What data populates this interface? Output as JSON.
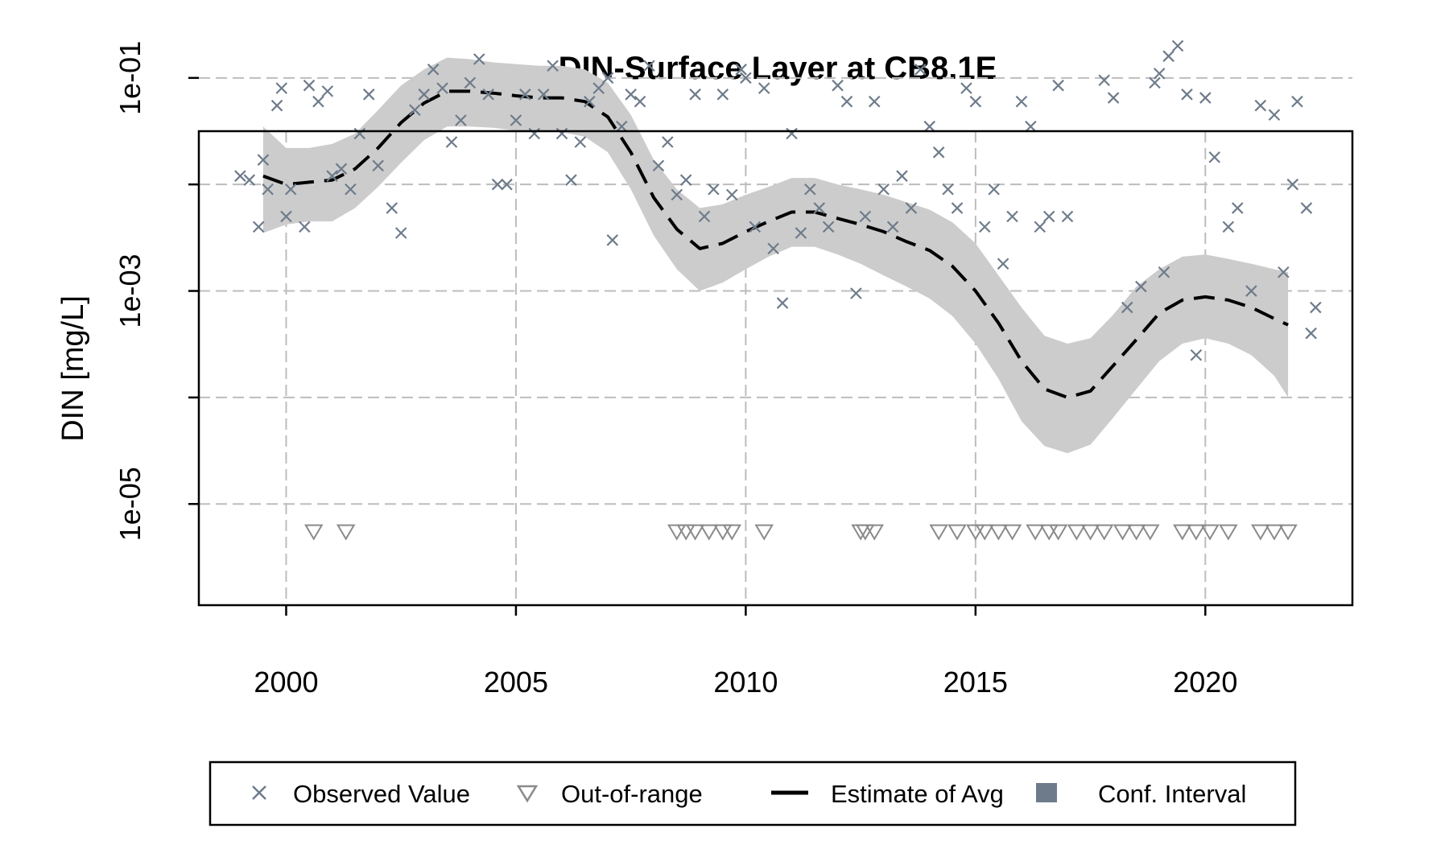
{
  "chart_data": {
    "type": "scatter",
    "title": "DIN-Surface Layer at CB8.1E",
    "xlabel": "",
    "ylabel": "DIN [mg/L]",
    "xlim": [
      1998.1,
      2023.2
    ],
    "ylim_log10": [
      -5.95,
      -1.5
    ],
    "y_scale": "log",
    "grid": true,
    "x_ticks": [
      2000,
      2005,
      2010,
      2015,
      2020
    ],
    "x_tick_labels": [
      "2000",
      "2005",
      "2010",
      "2015",
      "2020"
    ],
    "y_ticks": [
      1e-05,
      0.0001,
      0.001,
      0.01,
      0.1
    ],
    "y_tick_labels": [
      "1e-05",
      "",
      "1e-03",
      "",
      "1e-01"
    ],
    "legend": {
      "position": "bottom",
      "items": [
        {
          "label": "Observed Value",
          "symbol": "x"
        },
        {
          "label": "Out-of-range",
          "symbol": "triangle-down"
        },
        {
          "label": "Estimate of Avg",
          "symbol": "dashed-line"
        },
        {
          "label": "Conf. Interval",
          "symbol": "square"
        }
      ]
    },
    "colors": {
      "observed": "#6e7b8b",
      "out_of_range": "#8a8a8a",
      "estimate": "#000000",
      "ci_band": "#cccccc",
      "ci_legend": "#6e7b8b"
    },
    "series": [
      {
        "name": "Observed Value",
        "kind": "points",
        "x": [
          1999.0,
          1999.2,
          1999.4,
          1999.5,
          1999.6,
          1999.8,
          1999.9,
          2000.0,
          2000.1,
          2000.4,
          2000.5,
          2000.7,
          2000.9,
          2001.0,
          2001.2,
          2001.4,
          2001.6,
          2001.8,
          2002.0,
          2002.3,
          2002.5,
          2002.8,
          2003.0,
          2003.2,
          2003.4,
          2003.6,
          2003.8,
          2004.0,
          2004.2,
          2004.4,
          2004.6,
          2004.8,
          2005.0,
          2005.2,
          2005.4,
          2005.6,
          2005.8,
          2006.0,
          2006.2,
          2006.4,
          2006.6,
          2006.8,
          2007.0,
          2007.1,
          2007.3,
          2007.5,
          2007.7,
          2007.9,
          2008.1,
          2008.3,
          2008.5,
          2008.7,
          2008.9,
          2009.1,
          2009.3,
          2009.5,
          2009.7,
          2009.9,
          2010.0,
          2010.2,
          2010.4,
          2010.6,
          2010.8,
          2011.0,
          2011.2,
          2011.4,
          2011.6,
          2011.8,
          2012.0,
          2012.2,
          2012.4,
          2012.6,
          2012.8,
          2013.0,
          2013.2,
          2013.4,
          2013.6,
          2013.8,
          2014.0,
          2014.2,
          2014.4,
          2014.6,
          2014.8,
          2015.0,
          2015.2,
          2015.4,
          2015.6,
          2015.8,
          2016.0,
          2016.2,
          2016.4,
          2016.6,
          2016.8,
          2017.0,
          2017.8,
          2018.0,
          2018.3,
          2018.6,
          2018.9,
          2019.0,
          2019.1,
          2019.2,
          2019.4,
          2019.6,
          2019.8,
          2020.0,
          2020.2,
          2020.5,
          2020.7,
          2021.0,
          2021.2,
          2021.5,
          2021.7,
          2021.9,
          2022.0,
          2022.2,
          2022.3,
          2022.4
        ],
        "y": [
          0.012,
          0.011,
          0.004,
          0.017,
          0.009,
          0.055,
          0.08,
          0.005,
          0.009,
          0.004,
          0.085,
          0.06,
          0.075,
          0.012,
          0.014,
          0.009,
          0.03,
          0.07,
          0.015,
          0.006,
          0.0035,
          0.05,
          0.07,
          0.12,
          0.08,
          0.025,
          0.04,
          0.09,
          0.15,
          0.07,
          0.01,
          0.01,
          0.04,
          0.07,
          0.03,
          0.07,
          0.13,
          0.03,
          0.011,
          0.025,
          0.06,
          0.08,
          0.1,
          0.003,
          0.035,
          0.07,
          0.06,
          0.13,
          0.015,
          0.025,
          0.008,
          0.011,
          0.07,
          0.005,
          0.009,
          0.07,
          0.008,
          0.12,
          0.1,
          0.004,
          0.08,
          0.0025,
          0.00077,
          0.03,
          0.0035,
          0.009,
          0.006,
          0.004,
          0.085,
          0.06,
          0.00095,
          0.005,
          0.06,
          0.009,
          0.004,
          0.012,
          0.006,
          0.12,
          0.035,
          0.02,
          0.009,
          0.006,
          0.08,
          0.06,
          0.004,
          0.009,
          0.0018,
          0.005,
          0.06,
          0.035,
          0.004,
          0.005,
          0.085,
          0.005,
          0.095,
          0.065,
          0.0007,
          0.0011,
          0.09,
          0.11,
          0.0015,
          0.16,
          0.2,
          0.07,
          0.00025,
          0.065,
          0.018,
          0.004,
          0.006,
          0.001,
          0.055,
          0.045,
          0.0015,
          0.01,
          0.06,
          0.006,
          0.0004,
          0.0007
        ],
        "y_note": "approximate reading on log scale"
      },
      {
        "name": "Out-of-range",
        "kind": "points",
        "x": [
          2000.6,
          2001.3,
          2008.5,
          2008.7,
          2008.9,
          2009.2,
          2009.5,
          2009.7,
          2010.4,
          2012.5,
          2012.6,
          2012.8,
          2014.2,
          2014.6,
          2015.0,
          2015.2,
          2015.5,
          2015.8,
          2016.3,
          2016.6,
          2016.8,
          2017.2,
          2017.5,
          2017.8,
          2018.2,
          2018.5,
          2018.8,
          2019.5,
          2019.8,
          2020.1,
          2020.5,
          2021.2,
          2021.5,
          2021.8
        ],
        "y": [
          5.5e-06,
          5.5e-06,
          5.5e-06,
          5.5e-06,
          5.5e-06,
          5.5e-06,
          5.5e-06,
          5.5e-06,
          5.5e-06,
          5.5e-06,
          5.5e-06,
          5.5e-06,
          5.5e-06,
          5.5e-06,
          5.5e-06,
          5.5e-06,
          5.5e-06,
          5.5e-06,
          5.5e-06,
          5.5e-06,
          5.5e-06,
          5.5e-06,
          5.5e-06,
          5.5e-06,
          5.5e-06,
          5.5e-06,
          5.5e-06,
          5.5e-06,
          5.5e-06,
          5.5e-06,
          5.5e-06,
          5.5e-06,
          5.5e-06,
          5.5e-06
        ]
      },
      {
        "name": "Estimate of Avg",
        "kind": "line",
        "x": [
          1999.5,
          2000.0,
          2000.5,
          2001.0,
          2001.5,
          2002.0,
          2002.5,
          2003.0,
          2003.5,
          2004.0,
          2004.5,
          2005.0,
          2005.5,
          2006.0,
          2006.5,
          2007.0,
          2007.5,
          2008.0,
          2008.5,
          2009.0,
          2009.5,
          2010.0,
          2010.5,
          2011.0,
          2011.5,
          2012.0,
          2012.5,
          2013.0,
          2013.5,
          2014.0,
          2014.5,
          2015.0,
          2015.5,
          2016.0,
          2016.5,
          2017.0,
          2017.5,
          2018.0,
          2018.5,
          2019.0,
          2019.5,
          2020.0,
          2020.5,
          2021.0,
          2021.5,
          2021.8
        ],
        "y": [
          0.012,
          0.01,
          0.0105,
          0.011,
          0.014,
          0.022,
          0.038,
          0.058,
          0.075,
          0.075,
          0.072,
          0.068,
          0.065,
          0.065,
          0.06,
          0.043,
          0.02,
          0.0075,
          0.0038,
          0.0025,
          0.0028,
          0.0036,
          0.0045,
          0.0055,
          0.0055,
          0.0048,
          0.0042,
          0.0036,
          0.0029,
          0.0024,
          0.0017,
          0.001,
          0.0005,
          0.00022,
          0.00012,
          0.0001,
          0.000115,
          0.0002,
          0.00035,
          0.00062,
          0.00082,
          0.00088,
          0.00082,
          0.0007,
          0.00055,
          0.00048
        ]
      },
      {
        "name": "Conf. Interval",
        "kind": "band",
        "x": [
          1999.5,
          2000.0,
          2000.5,
          2001.0,
          2001.5,
          2002.0,
          2002.5,
          2003.0,
          2003.5,
          2004.0,
          2004.5,
          2005.0,
          2005.5,
          2006.0,
          2006.5,
          2007.0,
          2007.5,
          2008.0,
          2008.5,
          2009.0,
          2009.5,
          2010.0,
          2010.5,
          2011.0,
          2011.5,
          2012.0,
          2012.5,
          2013.0,
          2013.5,
          2014.0,
          2014.5,
          2015.0,
          2015.5,
          2016.0,
          2016.5,
          2017.0,
          2017.5,
          2018.0,
          2018.5,
          2019.0,
          2019.5,
          2020.0,
          2020.5,
          2021.0,
          2021.5,
          2021.8
        ],
        "lower": [
          0.0035,
          0.0042,
          0.0045,
          0.0045,
          0.006,
          0.0095,
          0.016,
          0.026,
          0.035,
          0.035,
          0.034,
          0.032,
          0.031,
          0.031,
          0.028,
          0.02,
          0.009,
          0.0033,
          0.0016,
          0.001,
          0.0012,
          0.0016,
          0.0021,
          0.0026,
          0.0026,
          0.0022,
          0.0018,
          0.0014,
          0.0011,
          0.00085,
          0.00058,
          0.00032,
          0.00015,
          6e-05,
          3.5e-05,
          3e-05,
          3.6e-05,
          6.5e-05,
          0.00012,
          0.00022,
          0.00032,
          0.00036,
          0.00032,
          0.00025,
          0.00016,
          0.0001
        ],
        "upper": [
          0.035,
          0.022,
          0.022,
          0.024,
          0.03,
          0.05,
          0.085,
          0.12,
          0.155,
          0.15,
          0.14,
          0.135,
          0.13,
          0.13,
          0.12,
          0.09,
          0.045,
          0.017,
          0.009,
          0.006,
          0.0065,
          0.008,
          0.0095,
          0.0115,
          0.0115,
          0.01,
          0.009,
          0.008,
          0.0068,
          0.0058,
          0.0044,
          0.0028,
          0.0014,
          0.0007,
          0.00038,
          0.00032,
          0.00036,
          0.0006,
          0.0011,
          0.0016,
          0.0021,
          0.0022,
          0.002,
          0.0018,
          0.0016,
          0.0015
        ]
      }
    ]
  }
}
